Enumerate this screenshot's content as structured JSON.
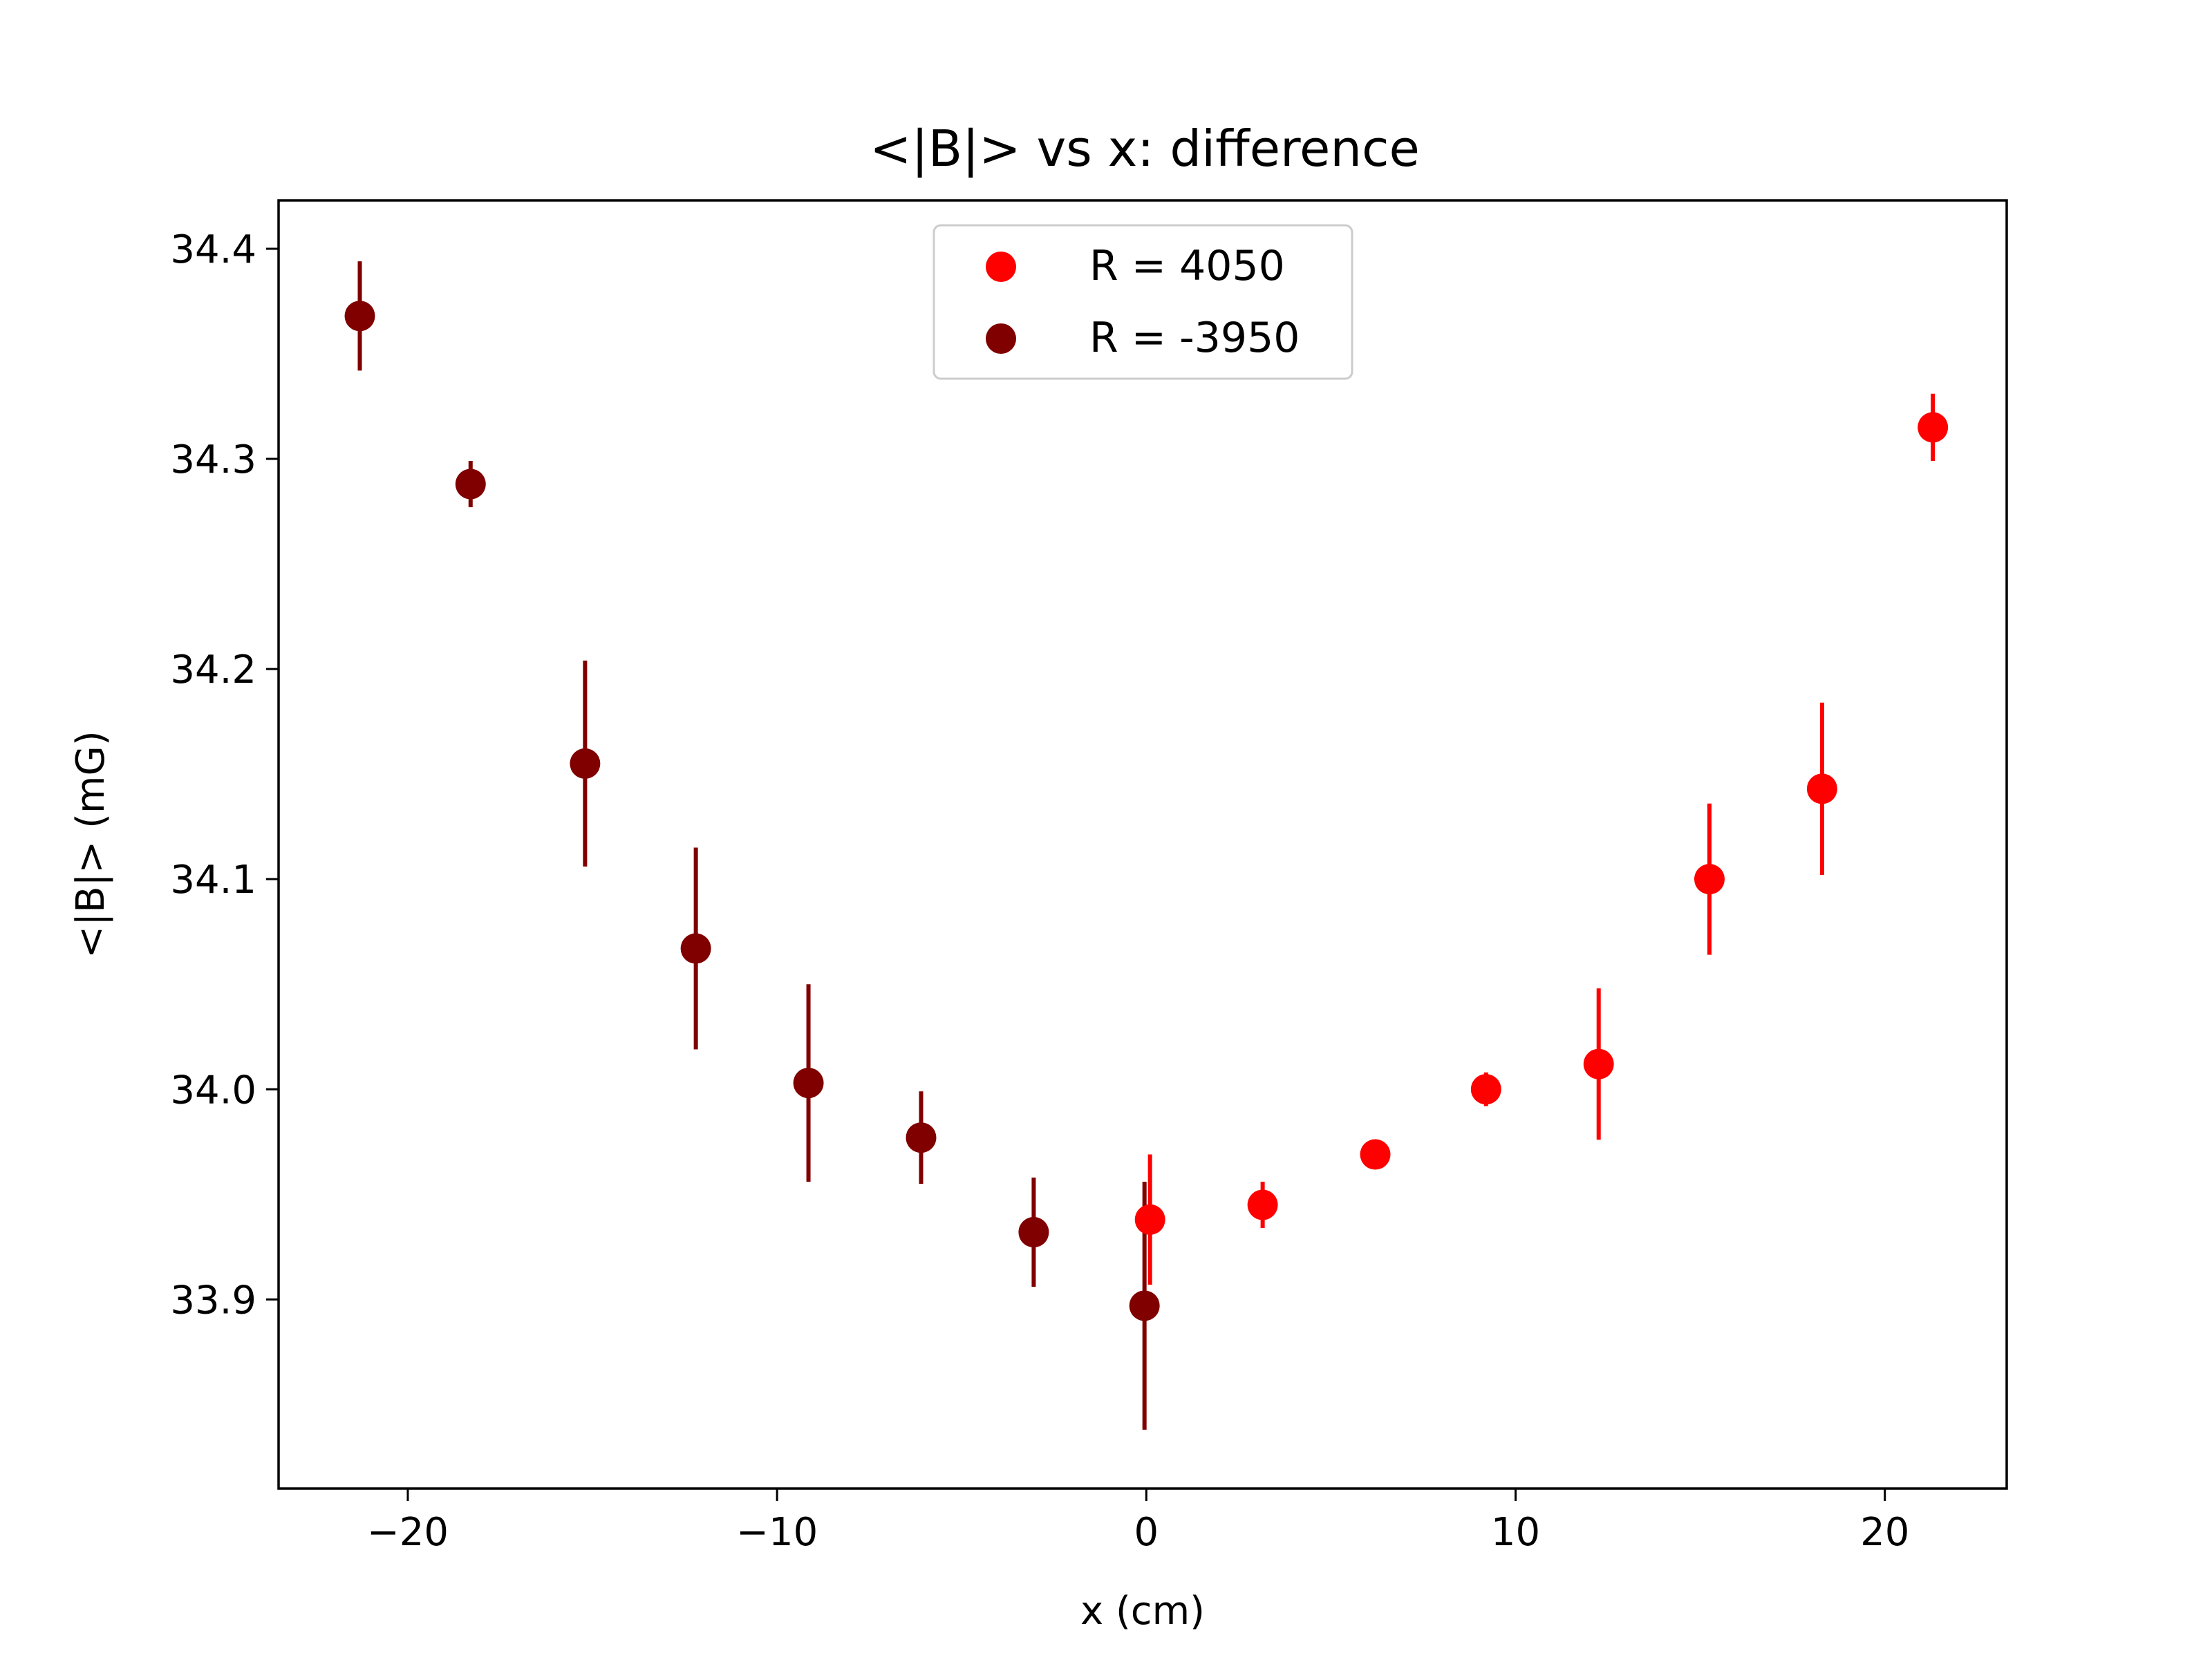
{
  "chart_data": {
    "type": "scatter",
    "title": "<|B|> vs x: difference",
    "xlabel": "x (cm)",
    "ylabel": "<|B|> (mG)",
    "xlim": [
      -23.5,
      23.3
    ],
    "ylim": [
      33.81,
      34.423
    ],
    "xticks": [
      {
        "value": -20,
        "label": "−20"
      },
      {
        "value": -10,
        "label": "−10"
      },
      {
        "value": 0,
        "label": "0"
      },
      {
        "value": 10,
        "label": "10"
      },
      {
        "value": 20,
        "label": "20"
      }
    ],
    "yticks": [
      {
        "value": 33.9,
        "label": "33.9"
      },
      {
        "value": 34.0,
        "label": "34.0"
      },
      {
        "value": 34.1,
        "label": "34.1"
      },
      {
        "value": 34.2,
        "label": "34.2"
      },
      {
        "value": 34.3,
        "label": "34.3"
      },
      {
        "value": 34.4,
        "label": "34.4"
      }
    ],
    "grid": false,
    "legend_position": "top-center",
    "series": [
      {
        "name": "R = 4050",
        "color": "#ff0000",
        "points": [
          {
            "x": 0.1,
            "y": 33.938,
            "err": 0.031
          },
          {
            "x": 3.15,
            "y": 33.945,
            "err": 0.011
          },
          {
            "x": 6.2,
            "y": 33.969,
            "err": 0.005
          },
          {
            "x": 9.2,
            "y": 34.0,
            "err": 0.008
          },
          {
            "x": 12.25,
            "y": 34.012,
            "err": 0.036
          },
          {
            "x": 15.25,
            "y": 34.1,
            "err": 0.036
          },
          {
            "x": 18.3,
            "y": 34.143,
            "err": 0.041
          },
          {
            "x": 21.3,
            "y": 34.315,
            "err": 0.016
          }
        ]
      },
      {
        "name": "R = -3950",
        "color": "#800000",
        "points": [
          {
            "x": -21.3,
            "y": 34.368,
            "err": 0.026
          },
          {
            "x": -18.3,
            "y": 34.288,
            "err": 0.011
          },
          {
            "x": -15.2,
            "y": 34.155,
            "err": 0.049
          },
          {
            "x": -12.2,
            "y": 34.067,
            "err": 0.048
          },
          {
            "x": -9.15,
            "y": 34.003,
            "err": 0.047
          },
          {
            "x": -6.1,
            "y": 33.977,
            "err": 0.022
          },
          {
            "x": -3.05,
            "y": 33.932,
            "err": 0.026
          },
          {
            "x": -0.05,
            "y": 33.897,
            "err": 0.059
          }
        ]
      }
    ]
  }
}
